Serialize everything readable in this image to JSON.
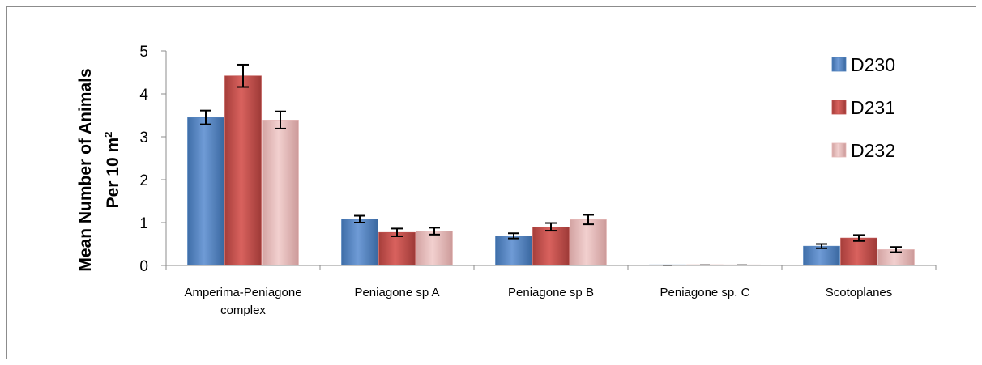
{
  "chart_data": {
    "type": "bar",
    "title": "",
    "xlabel": "",
    "ylabel_line1": "Mean Number of Animals",
    "ylabel_line2": "Per 10 m",
    "ylabel_sup": "2",
    "ylim": [
      0,
      5
    ],
    "yticks": [
      0,
      1,
      2,
      3,
      4,
      5
    ],
    "categories": [
      [
        "Amperima-Peniagone",
        "complex"
      ],
      [
        "Peniagone sp A"
      ],
      [
        "Peniagone sp B"
      ],
      [
        "Peniagone sp. C"
      ],
      [
        "Scotoplanes"
      ]
    ],
    "series": [
      {
        "name": "D230",
        "values": [
          3.45,
          1.08,
          0.69,
          0.0,
          0.45
        ],
        "errors": [
          0.16,
          0.08,
          0.06,
          0.0,
          0.05
        ],
        "color": "#4f81bd"
      },
      {
        "name": "D231",
        "values": [
          4.42,
          0.77,
          0.9,
          0.01,
          0.64
        ],
        "errors": [
          0.26,
          0.09,
          0.09,
          0.0,
          0.07
        ],
        "color": "#c0504d"
      },
      {
        "name": "D232",
        "values": [
          3.39,
          0.8,
          1.07,
          0.01,
          0.37
        ],
        "errors": [
          0.2,
          0.08,
          0.11,
          0.0,
          0.06
        ],
        "color": "#e6b9b8"
      }
    ],
    "legend_position": "top-right",
    "grid": false
  }
}
